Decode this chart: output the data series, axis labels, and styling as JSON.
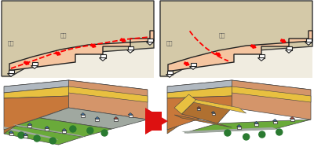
{
  "bg_color": "#ffffff",
  "fill_salmon": "#f5c5a0",
  "ground_tan": "#d4c9a8",
  "panel_bg": "#f0ece0",
  "text_color": "#555555",
  "red_arrow": "#dd1111",
  "label_tl_left": "地山",
  "label_tl_right": "盛土",
  "label_tr_left": "地山",
  "label_tr_right": "盛土",
  "soil_brown": "#b07030",
  "soil_dark": "#8b5a20",
  "soil_yellow": "#e8c040",
  "soil_orange": "#c8783a",
  "soil_light": "#d4956a",
  "green_grass": "#6aaa3a",
  "green_tree": "#2a7a30",
  "road_gray": "#a0a8a0",
  "house_white": "#f0f0f0",
  "roof_blue": "#4488cc",
  "roof_red": "#cc4433",
  "rock_gray": "#b0b8c0"
}
